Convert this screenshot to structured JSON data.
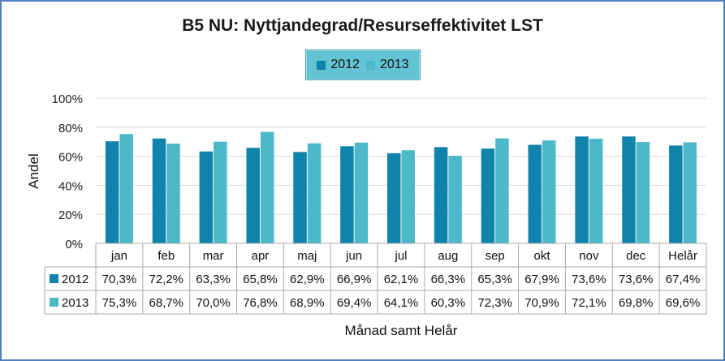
{
  "chart_data": {
    "type": "bar",
    "title": "B5 NU: Nyttjandegrad/Resurseffektivitet LST",
    "xlabel": "Månad samt Helår",
    "ylabel": "Andel",
    "ylim": [
      0,
      100
    ],
    "y_ticks": [
      "0%",
      "20%",
      "40%",
      "60%",
      "80%",
      "100%"
    ],
    "y_tick_values": [
      0,
      20,
      40,
      60,
      80,
      100
    ],
    "categories": [
      "jan",
      "feb",
      "mar",
      "apr",
      "maj",
      "jun",
      "jul",
      "aug",
      "sep",
      "okt",
      "nov",
      "dec",
      "Helår"
    ],
    "series": [
      {
        "name": "2012",
        "color": "#0f83ab",
        "values": [
          70.3,
          72.2,
          63.3,
          65.8,
          62.9,
          66.9,
          62.1,
          66.3,
          65.3,
          67.9,
          73.6,
          73.6,
          67.4
        ],
        "labels": [
          "70,3%",
          "72,2%",
          "63,3%",
          "65,8%",
          "62,9%",
          "66,9%",
          "62,1%",
          "66,3%",
          "65,3%",
          "67,9%",
          "73,6%",
          "73,6%",
          "67,4%"
        ]
      },
      {
        "name": "2013",
        "color": "#4cb8c9",
        "values": [
          75.3,
          68.7,
          70.0,
          76.8,
          68.9,
          69.4,
          64.1,
          60.3,
          72.3,
          70.9,
          72.1,
          69.8,
          69.6
        ],
        "labels": [
          "75,3%",
          "68,7%",
          "70,0%",
          "76,8%",
          "68,9%",
          "69,4%",
          "64,1%",
          "60,3%",
          "72,3%",
          "70,9%",
          "72,1%",
          "69,8%",
          "69,6%"
        ]
      }
    ],
    "grid": true,
    "legend_position": "top-center",
    "data_table": true
  }
}
